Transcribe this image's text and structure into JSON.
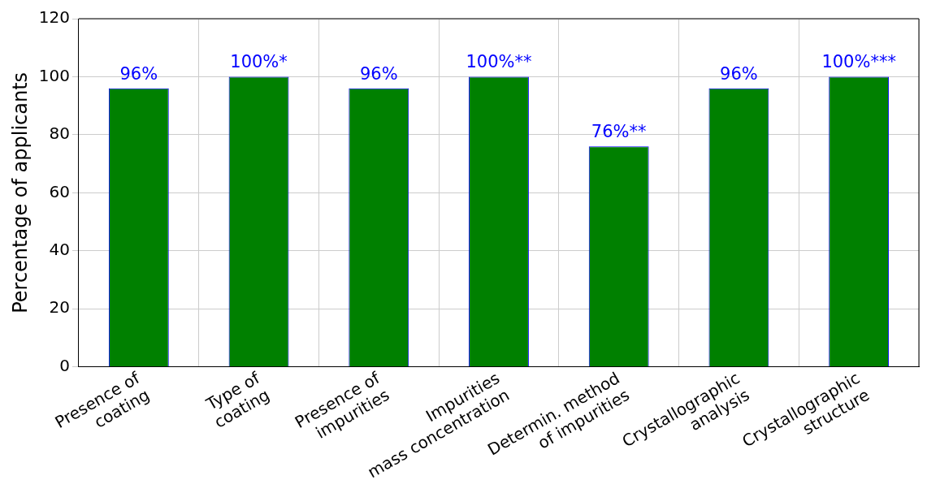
{
  "chart_data": {
    "type": "bar",
    "ylabel": "Percentage of applicants",
    "categories": [
      "Presence of\ncoating",
      "Type of\ncoating",
      "Presence of\nimpurities",
      "Impurities\nmass concentration",
      "Determin. method\nof impurities",
      "Crystallographic\nanalysis",
      "Crystallographic\nstructure"
    ],
    "values": [
      96,
      100,
      96,
      100,
      76,
      96,
      100
    ],
    "value_labels": [
      "96%",
      "100%*",
      "96%",
      "100%**",
      "76%**",
      "96%",
      "100%***"
    ],
    "color": "#008000",
    "ylim": [
      0,
      120
    ],
    "yticks": [
      0,
      20,
      40,
      60,
      80,
      100,
      120
    ],
    "grid": true,
    "legend": false
  }
}
